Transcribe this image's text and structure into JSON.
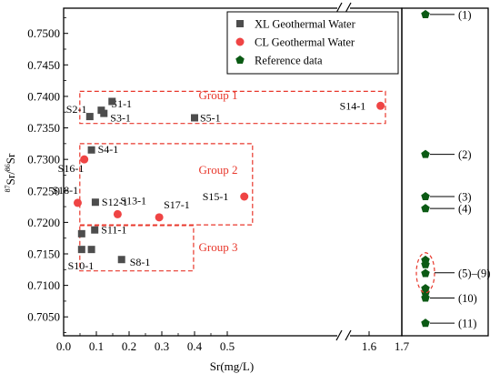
{
  "chart_data": {
    "type": "scatter",
    "title": "",
    "xlabel": "Sr(mg/L)",
    "ylabel_parts": {
      "sup1": "87",
      "mid": "Sr/",
      "sup2": "86",
      "tail": "Sr"
    },
    "xlim": [
      0.0,
      1.7
    ],
    "xticks": [
      0.0,
      0.1,
      0.2,
      0.3,
      0.4,
      0.5,
      1.6,
      1.7
    ],
    "x_break_between": [
      0.5,
      1.6
    ],
    "ylim": [
      0.702,
      0.754
    ],
    "yticks": [
      "0.7050",
      "0.7100",
      "0.7150",
      "0.7200",
      "0.7250",
      "0.7300",
      "0.7350",
      "0.7400",
      "0.7450",
      "0.7500"
    ],
    "grid": false,
    "legend_position": "top-right",
    "series": [
      {
        "name": "XL Geothermal Water",
        "marker": "square",
        "color": "#4d4d4d",
        "points": [
          {
            "x": 0.08,
            "y": 0.7368,
            "label": "S2-1"
          },
          {
            "x": 0.115,
            "y": 0.7378,
            "label": "S1-1"
          },
          {
            "x": 0.123,
            "y": 0.7373,
            "label": "S3-1"
          },
          {
            "x": 0.148,
            "y": 0.7392,
            "label": ""
          },
          {
            "x": 0.4,
            "y": 0.7366,
            "label": "S5-1"
          },
          {
            "x": 0.085,
            "y": 0.7315,
            "label": "S4-1"
          },
          {
            "x": 0.097,
            "y": 0.7232,
            "label": "S12-1"
          },
          {
            "x": 0.055,
            "y": 0.7182,
            "label": ""
          },
          {
            "x": 0.095,
            "y": 0.7188,
            "label": "S11-1"
          },
          {
            "x": 0.055,
            "y": 0.7157,
            "label": ""
          },
          {
            "x": 0.085,
            "y": 0.7157,
            "label": "S10-1"
          },
          {
            "x": 0.177,
            "y": 0.7141,
            "label": "S8-1"
          }
        ]
      },
      {
        "name": "CL Geothermal Water",
        "marker": "circle",
        "color": "#ef4444",
        "points": [
          {
            "x": 1.635,
            "y": 0.7385,
            "label": "S14-1"
          },
          {
            "x": 0.063,
            "y": 0.73,
            "label": "S16-1"
          },
          {
            "x": 0.043,
            "y": 0.7231,
            "label": "S18-1"
          },
          {
            "x": 0.165,
            "y": 0.7213,
            "label": "S13-1"
          },
          {
            "x": 0.292,
            "y": 0.7208,
            "label": "S17-1"
          },
          {
            "x": 0.552,
            "y": 0.7241,
            "label": "S15-1"
          }
        ]
      },
      {
        "name": "Reference data",
        "marker": "pentagon",
        "color": "#0b5a14",
        "points": [
          {
            "y": 0.753,
            "label": "(1)"
          },
          {
            "y": 0.7308,
            "label": "(2)"
          },
          {
            "y": 0.7241,
            "label": "(3)"
          },
          {
            "y": 0.7222,
            "label": "(4)"
          },
          {
            "y": 0.714,
            "label": "(5)–(9)"
          },
          {
            "y": 0.7133,
            "label": ""
          },
          {
            "y": 0.7119,
            "label": ""
          },
          {
            "y": 0.7095,
            "label": ""
          },
          {
            "y": 0.7088,
            "label": ""
          },
          {
            "y": 0.708,
            "label": "(10)"
          },
          {
            "y": 0.704,
            "label": "(11)"
          }
        ]
      }
    ],
    "groups": [
      {
        "label": "Group 1",
        "x0": 0.03,
        "x1": 1.7,
        "y0": 0.7357,
        "y1": 0.7408
      },
      {
        "label": "Group 2",
        "x0": 0.03,
        "x1": 0.58,
        "y0": 0.7196,
        "y1": 0.7325
      },
      {
        "label": "Group 3",
        "x0": 0.03,
        "x1": 0.397,
        "y0": 0.7123,
        "y1": 0.7195
      }
    ],
    "ref_cluster_label": "(5)–(9)"
  }
}
